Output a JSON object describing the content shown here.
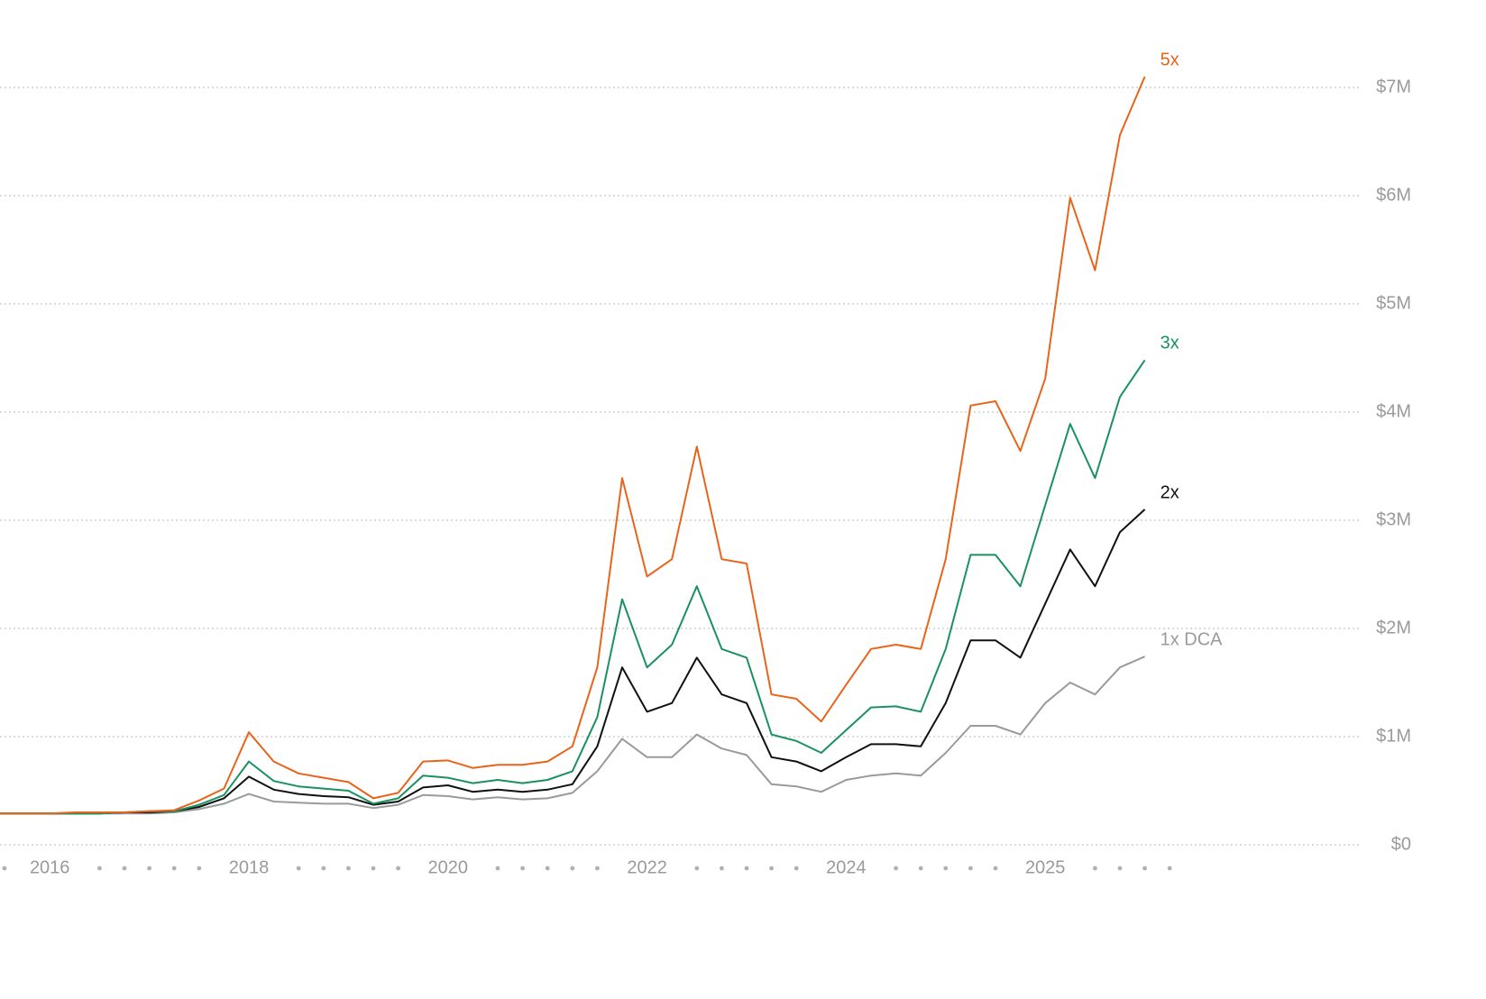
{
  "chart_data": {
    "type": "line",
    "categories": [
      null,
      null,
      "2016",
      null,
      null,
      null,
      null,
      null,
      null,
      null,
      "2018",
      null,
      null,
      null,
      null,
      null,
      null,
      null,
      "2020",
      null,
      null,
      null,
      null,
      null,
      null,
      null,
      "2022",
      null,
      null,
      null,
      null,
      null,
      null,
      null,
      "2024",
      null,
      null,
      null,
      null,
      null,
      null,
      null,
      "2025",
      null,
      null,
      null,
      null,
      null
    ],
    "series": [
      {
        "name": "5x",
        "color": "#e8641b",
        "values": [
          0.29,
          0.29,
          0.29,
          0.3,
          0.3,
          0.3,
          0.31,
          0.32,
          0.41,
          0.52,
          1.04,
          0.77,
          0.66,
          0.62,
          0.58,
          0.43,
          0.48,
          0.77,
          0.78,
          0.71,
          0.74,
          0.74,
          0.77,
          0.91,
          1.64,
          3.39,
          2.48,
          2.64,
          3.68,
          2.64,
          2.6,
          1.39,
          1.35,
          1.14,
          1.48,
          1.81,
          1.85,
          1.81,
          2.64,
          4.06,
          4.1,
          3.64,
          4.31,
          5.98,
          5.31,
          6.56,
          7.1,
          null
        ]
      },
      {
        "name": "3x",
        "color": "#1a9160",
        "values": [
          0.29,
          0.29,
          0.29,
          0.29,
          0.29,
          0.3,
          0.31,
          0.31,
          0.37,
          0.46,
          0.77,
          0.59,
          0.54,
          0.52,
          0.5,
          0.38,
          0.43,
          0.64,
          0.62,
          0.57,
          0.6,
          0.57,
          0.6,
          0.68,
          1.18,
          2.27,
          1.64,
          1.85,
          2.39,
          1.81,
          1.73,
          1.02,
          0.96,
          0.85,
          1.06,
          1.27,
          1.28,
          1.23,
          1.81,
          2.68,
          2.68,
          2.39,
          3.14,
          3.89,
          3.39,
          4.14,
          4.48,
          null
        ]
      },
      {
        "name": "2x",
        "color": "#111111",
        "values": [
          0.29,
          0.29,
          0.29,
          0.29,
          0.29,
          0.3,
          0.3,
          0.31,
          0.35,
          0.43,
          0.63,
          0.51,
          0.47,
          0.45,
          0.44,
          0.37,
          0.4,
          0.53,
          0.55,
          0.49,
          0.51,
          0.49,
          0.51,
          0.56,
          0.91,
          1.64,
          1.23,
          1.31,
          1.73,
          1.39,
          1.31,
          0.81,
          0.77,
          0.68,
          0.81,
          0.93,
          0.93,
          0.91,
          1.31,
          1.89,
          1.89,
          1.73,
          2.23,
          2.73,
          2.39,
          2.89,
          3.1,
          null
        ]
      },
      {
        "name": "1x DCA",
        "color": "#9a9a9a",
        "values": [
          0.29,
          0.29,
          0.29,
          0.29,
          0.29,
          0.29,
          0.29,
          0.3,
          0.33,
          0.38,
          0.47,
          0.4,
          0.39,
          0.38,
          0.38,
          0.34,
          0.37,
          0.46,
          0.45,
          0.42,
          0.44,
          0.42,
          0.43,
          0.48,
          0.68,
          0.98,
          0.81,
          0.81,
          1.02,
          0.89,
          0.83,
          0.56,
          0.54,
          0.49,
          0.6,
          0.64,
          0.66,
          0.64,
          0.85,
          1.1,
          1.1,
          1.02,
          1.31,
          1.5,
          1.39,
          1.64,
          1.74,
          null
        ]
      }
    ],
    "ylim": [
      0,
      7.5
    ],
    "yticks": [
      {
        "value": 0,
        "label": "$0"
      },
      {
        "value": 1,
        "label": "$1M"
      },
      {
        "value": 2,
        "label": "$2M"
      },
      {
        "value": 3,
        "label": "$3M"
      },
      {
        "value": 4,
        "label": "$4M"
      },
      {
        "value": 5,
        "label": "$5M"
      },
      {
        "value": 6,
        "label": "$6M"
      },
      {
        "value": 7,
        "label": "$7M"
      }
    ],
    "grid": true
  }
}
